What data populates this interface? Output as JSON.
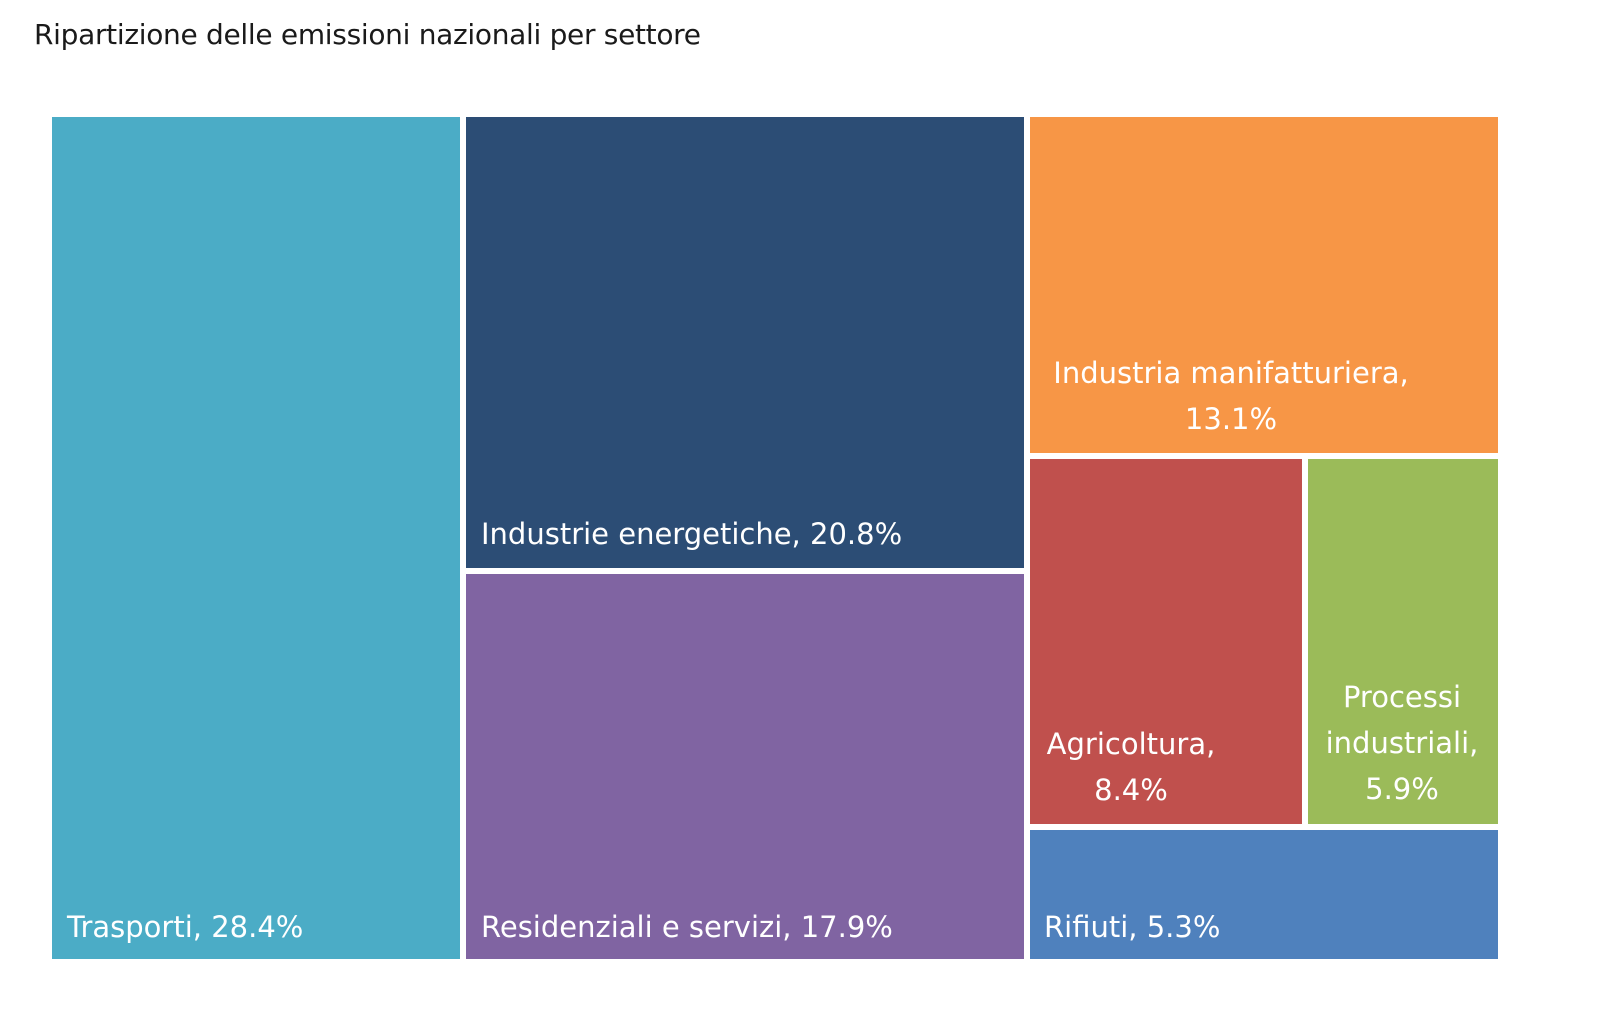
{
  "title": "Ripartizione delle emissioni nazionali per settore",
  "chart_data": {
    "type": "treemap",
    "title": "Ripartizione delle emissioni nazionali per settore",
    "unit": "%",
    "segments": [
      {
        "name": "Trasporti",
        "value": 28.4,
        "label": [
          "Trasporti, 28.4%"
        ],
        "color": "#4BACC6"
      },
      {
        "name": "Industrie energetiche",
        "value": 20.8,
        "label": [
          "Industrie energetiche, 20.8%"
        ],
        "color": "#2C4D75"
      },
      {
        "name": "Residenziali e servizi",
        "value": 17.9,
        "label": [
          "Residenziali e servizi, 17.9%"
        ],
        "color": "#8064A2"
      },
      {
        "name": "Industria manifatturiera",
        "value": 13.1,
        "label": [
          "Industria manifatturiera,",
          "13.1%"
        ],
        "color": "#F79646"
      },
      {
        "name": "Agricoltura",
        "value": 8.4,
        "label": [
          "Agricoltura,",
          "8.4%"
        ],
        "color": "#C0504D"
      },
      {
        "name": "Processi industriali",
        "value": 5.9,
        "label": [
          "Processi",
          "industriali,",
          "5.9%"
        ],
        "color": "#9BBB59"
      },
      {
        "name": "Rifiuti",
        "value": 5.3,
        "label": [
          "Rifiuti, 5.3%"
        ],
        "color": "#4F81BD"
      }
    ]
  }
}
